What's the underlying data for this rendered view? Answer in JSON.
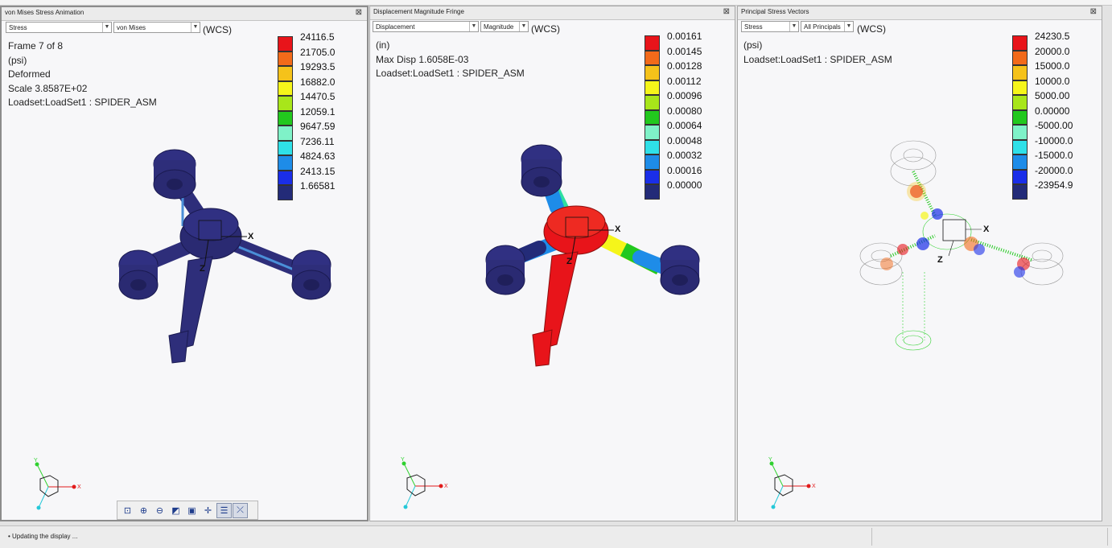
{
  "panels": [
    {
      "title": "von Mises Stress Animation",
      "dropdown1": "Stress",
      "dropdown2": "von Mises",
      "wcs": "(WCS)",
      "info": [
        "Frame 7 of 8",
        "(psi)",
        "Deformed",
        "Scale  3.8587E+02",
        "Loadset:LoadSet1 :   SPIDER_ASM"
      ],
      "legend": [
        "24116.5",
        "21705.0",
        "19293.5",
        "16882.0",
        "14470.5",
        "12059.1",
        "9647.59",
        "7236.11",
        "4824.63",
        "2413.15",
        "1.66581"
      ]
    },
    {
      "title": "Displacement Magnitude Fringe",
      "dropdown1": "Displacement",
      "dropdown2": "Magnitude",
      "wcs": "(WCS)",
      "info": [
        "(in)",
        "Max Disp  1.6058E-03",
        "Loadset:LoadSet1 :   SPIDER_ASM"
      ],
      "legend": [
        "0.00161",
        "0.00145",
        "0.00128",
        "0.00112",
        "0.00096",
        "0.00080",
        "0.00064",
        "0.00048",
        "0.00032",
        "0.00016",
        "0.00000"
      ]
    },
    {
      "title": "Principal Stress Vectors",
      "dropdown1": "Stress",
      "dropdown2": "All Principals",
      "wcs": "(WCS)",
      "info": [
        "(psi)",
        "Loadset:LoadSet1 :   SPIDER_ASM"
      ],
      "legend": [
        "24230.5",
        "20000.0",
        "15000.0",
        "10000.0",
        "5000.00",
        "0.00000",
        "-5000.00",
        "-10000.0",
        "-15000.0",
        "-20000.0",
        "-23954.9"
      ]
    }
  ],
  "fringe_colors": [
    "#e8141a",
    "#f26a1a",
    "#f5c21a",
    "#f5f51a",
    "#a8e61a",
    "#22c81e",
    "#7ff2c8",
    "#2fe0e8",
    "#1e8ce8",
    "#1a2ee8",
    "#232b78"
  ],
  "axis_labels": {
    "x": "X",
    "y": "Y",
    "z": "Z"
  },
  "toolbar_icons": [
    "refit-icon",
    "zoom-in-icon",
    "zoom-out-icon",
    "view-orientation-icon",
    "saved-views-icon",
    "spin-center-icon",
    "display-style-icon",
    "query-icon"
  ],
  "status": {
    "message": "Updating the display ..."
  }
}
